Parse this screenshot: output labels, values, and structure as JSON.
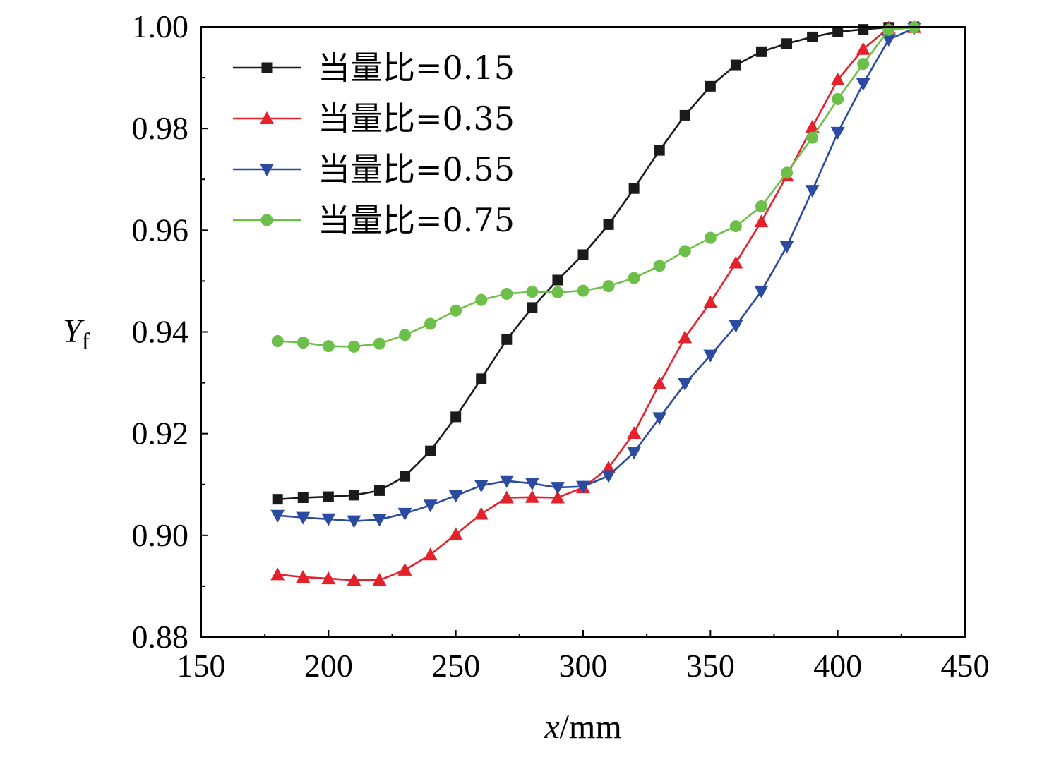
{
  "chart_data": {
    "type": "line",
    "title": "",
    "xlabel_var": "x",
    "xlabel_unit": "/mm",
    "ylabel_main": "Y",
    "ylabel_sub": "f",
    "xlim": [
      150,
      450
    ],
    "ylim": [
      0.88,
      1.0
    ],
    "xticks": [
      150,
      200,
      250,
      300,
      350,
      400,
      450
    ],
    "xtick_labels": [
      "150",
      "200",
      "250",
      "300",
      "350",
      "400",
      "450"
    ],
    "yticks": [
      0.88,
      0.9,
      0.92,
      0.94,
      0.96,
      0.98,
      1.0
    ],
    "ytick_labels": [
      "0.88",
      "0.90",
      "0.92",
      "0.94",
      "0.96",
      "0.98",
      "1.00"
    ],
    "grid": false,
    "legend_position": "top-left",
    "x": [
      180,
      190,
      200,
      210,
      220,
      230,
      240,
      250,
      260,
      270,
      280,
      290,
      300,
      310,
      320,
      330,
      340,
      350,
      360,
      370,
      380,
      390,
      400,
      410,
      420,
      430
    ],
    "series": [
      {
        "name": "当量比=0.15",
        "color": "#1a1a1a",
        "marker": "square",
        "values": [
          0.9071,
          0.9074,
          0.9076,
          0.9079,
          0.9088,
          0.9116,
          0.9166,
          0.9233,
          0.9308,
          0.9385,
          0.9448,
          0.9502,
          0.9552,
          0.9611,
          0.9682,
          0.9757,
          0.9826,
          0.9883,
          0.9925,
          0.9951,
          0.9967,
          0.998,
          0.999,
          0.9995,
          0.9999,
          1.0
        ]
      },
      {
        "name": "当量比=0.35",
        "color": "#e5212b",
        "marker": "triangle-up",
        "values": [
          0.8923,
          0.8918,
          0.8915,
          0.8912,
          0.8912,
          0.8932,
          0.8962,
          0.9002,
          0.9042,
          0.9074,
          0.9075,
          0.9074,
          0.9094,
          0.9133,
          0.9201,
          0.9298,
          0.9389,
          0.9458,
          0.9536,
          0.9617,
          0.9707,
          0.9803,
          0.9896,
          0.9956,
          0.9998,
          0.9999
        ]
      },
      {
        "name": "当量比=0.55",
        "color": "#2a4ba0",
        "marker": "triangle-down",
        "values": [
          0.9039,
          0.9035,
          0.9032,
          0.9028,
          0.9031,
          0.9043,
          0.9059,
          0.9078,
          0.9098,
          0.9107,
          0.9102,
          0.9094,
          0.9096,
          0.9117,
          0.9163,
          0.9231,
          0.9298,
          0.9354,
          0.9412,
          0.948,
          0.9568,
          0.9678,
          0.9792,
          0.9888,
          0.9975,
          0.9997
        ]
      },
      {
        "name": "当量比=0.75",
        "color": "#6cc04a",
        "marker": "circle",
        "values": [
          0.9382,
          0.9379,
          0.9372,
          0.9371,
          0.9377,
          0.9394,
          0.9416,
          0.9442,
          0.9463,
          0.9475,
          0.9479,
          0.9478,
          0.9481,
          0.949,
          0.9506,
          0.953,
          0.9559,
          0.9585,
          0.9608,
          0.9647,
          0.9713,
          0.9782,
          0.9858,
          0.9927,
          0.9994,
          0.9999
        ]
      }
    ]
  }
}
